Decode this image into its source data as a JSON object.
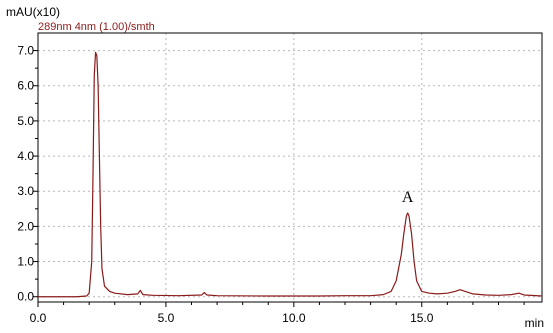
{
  "chart_data": {
    "type": "line",
    "ylabel": "mAU(x10)",
    "xlabel": "min",
    "detector_label": "289nm 4nm (1.00)/smth",
    "xlim": [
      0,
      19.7
    ],
    "ylim": [
      -0.15,
      7.5
    ],
    "x_ticks": [
      0,
      5,
      10,
      15
    ],
    "x_tick_labels": [
      "0.0",
      "5.0",
      "10.0",
      "15.0"
    ],
    "y_ticks": [
      0,
      1,
      2,
      3,
      4,
      5,
      6,
      7
    ],
    "y_tick_labels": [
      "0.0",
      "1.0",
      "2.0",
      "3.0",
      "4.0",
      "5.0",
      "6.0",
      "7.0"
    ],
    "grid": true,
    "annotations": [
      {
        "text": "A",
        "x": 14.45,
        "y": 2.7
      }
    ],
    "series": [
      {
        "color": "#8b1a1a",
        "x": [
          0,
          1.5,
          1.9,
          2.0,
          2.1,
          2.15,
          2.2,
          2.25,
          2.3,
          2.35,
          2.4,
          2.45,
          2.5,
          2.6,
          2.8,
          3.0,
          3.5,
          3.9,
          4.0,
          4.1,
          4.5,
          5.5,
          6.4,
          6.5,
          6.6,
          7.0,
          9.0,
          11.0,
          12.0,
          13.0,
          13.5,
          13.8,
          14.0,
          14.2,
          14.3,
          14.4,
          14.45,
          14.5,
          14.6,
          14.7,
          14.8,
          15.0,
          15.3,
          15.6,
          16.0,
          16.3,
          16.5,
          16.7,
          17.0,
          17.5,
          18.0,
          18.5,
          18.8,
          19.0,
          19.7
        ],
        "y": [
          0.0,
          0.0,
          0.02,
          0.1,
          1.0,
          3.5,
          6.3,
          6.95,
          6.85,
          6.0,
          4.0,
          2.0,
          0.8,
          0.3,
          0.15,
          0.1,
          0.06,
          0.08,
          0.18,
          0.06,
          0.04,
          0.03,
          0.05,
          0.12,
          0.05,
          0.03,
          0.02,
          0.02,
          0.03,
          0.03,
          0.06,
          0.15,
          0.45,
          1.2,
          1.8,
          2.3,
          2.38,
          2.3,
          1.8,
          1.0,
          0.45,
          0.15,
          0.1,
          0.08,
          0.1,
          0.15,
          0.2,
          0.15,
          0.08,
          0.05,
          0.04,
          0.06,
          0.1,
          0.05,
          0.02
        ]
      }
    ]
  }
}
